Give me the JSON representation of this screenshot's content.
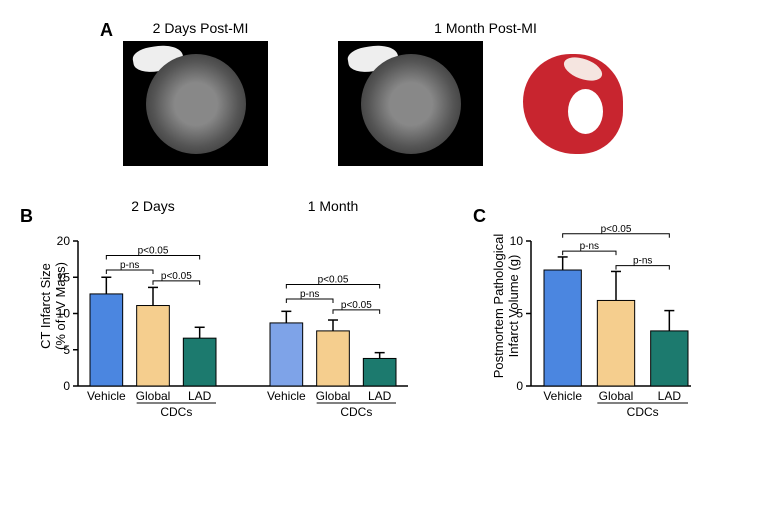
{
  "panelA": {
    "label": "A",
    "timepoints": [
      "2 Days Post-MI",
      "1 Month Post-MI"
    ]
  },
  "panelB": {
    "label": "B",
    "ylabel": "CT Infarct Size\n(% of LV Mass)",
    "ylabel_line1": "CT Infarct Size",
    "ylabel_line2": "(% of LV Mass)",
    "ylim": [
      0,
      20
    ],
    "ytick_step": 5,
    "yticks": [
      0,
      5,
      10,
      15,
      20
    ],
    "chart_titles": [
      "2 Days",
      "1 Month"
    ],
    "groups": [
      "Vehicle",
      "Global",
      "LAD"
    ],
    "cdcs_label": "CDCs",
    "timepoints": [
      {
        "title": "2 Days",
        "bars": [
          {
            "group": "Vehicle",
            "value": 12.7,
            "error": 2.3,
            "color": "#4b86e0"
          },
          {
            "group": "Global",
            "value": 11.1,
            "error": 2.5,
            "color": "#f5ce8e"
          },
          {
            "group": "LAD",
            "value": 6.6,
            "error": 1.5,
            "color": "#1c7a6e"
          }
        ],
        "sig": [
          {
            "from": 0,
            "to": 2,
            "label": "p<0.05",
            "y": 18
          },
          {
            "from": 0,
            "to": 1,
            "label": "p-ns",
            "y": 16
          },
          {
            "from": 1,
            "to": 2,
            "label": "p<0.05",
            "y": 14.5
          }
        ]
      },
      {
        "title": "1 Month",
        "bars": [
          {
            "group": "Vehicle",
            "value": 8.7,
            "error": 1.6,
            "color": "#7ea3e8"
          },
          {
            "group": "Global",
            "value": 7.6,
            "error": 1.5,
            "color": "#f5ce8e"
          },
          {
            "group": "LAD",
            "value": 3.8,
            "error": 0.8,
            "color": "#1c7a6e"
          }
        ],
        "sig": [
          {
            "from": 0,
            "to": 2,
            "label": "p<0.05",
            "y": 14
          },
          {
            "from": 0,
            "to": 1,
            "label": "p-ns",
            "y": 12
          },
          {
            "from": 1,
            "to": 2,
            "label": "p<0.05",
            "y": 10.5
          }
        ]
      }
    ]
  },
  "panelC": {
    "label": "C",
    "ylabel_line1": "Postmortem Pathological",
    "ylabel_line2": "Infarct Volume (g)",
    "ylim": [
      0,
      10
    ],
    "ytick_step": 5,
    "yticks": [
      0,
      5,
      10
    ],
    "groups": [
      "Vehicle",
      "Global",
      "LAD"
    ],
    "cdcs_label": "CDCs",
    "bars": [
      {
        "group": "Vehicle",
        "value": 8.0,
        "error": 0.9,
        "color": "#4b86e0"
      },
      {
        "group": "Global",
        "value": 5.9,
        "error": 2.0,
        "color": "#f5ce8e"
      },
      {
        "group": "LAD",
        "value": 3.8,
        "error": 1.4,
        "color": "#1c7a6e"
      }
    ],
    "sig": [
      {
        "from": 0,
        "to": 2,
        "label": "p<0.05",
        "y": 10.5
      },
      {
        "from": 0,
        "to": 1,
        "label": "p-ns",
        "y": 9.3
      },
      {
        "from": 1,
        "to": 2,
        "label": "p-ns",
        "y": 8.3
      }
    ]
  },
  "style": {
    "bar_stroke": "#000000",
    "axis_color": "#000000",
    "sig_fontsize": 10,
    "axis_fontsize": 12,
    "title_fontsize": 14,
    "bar_width": 0.7
  }
}
